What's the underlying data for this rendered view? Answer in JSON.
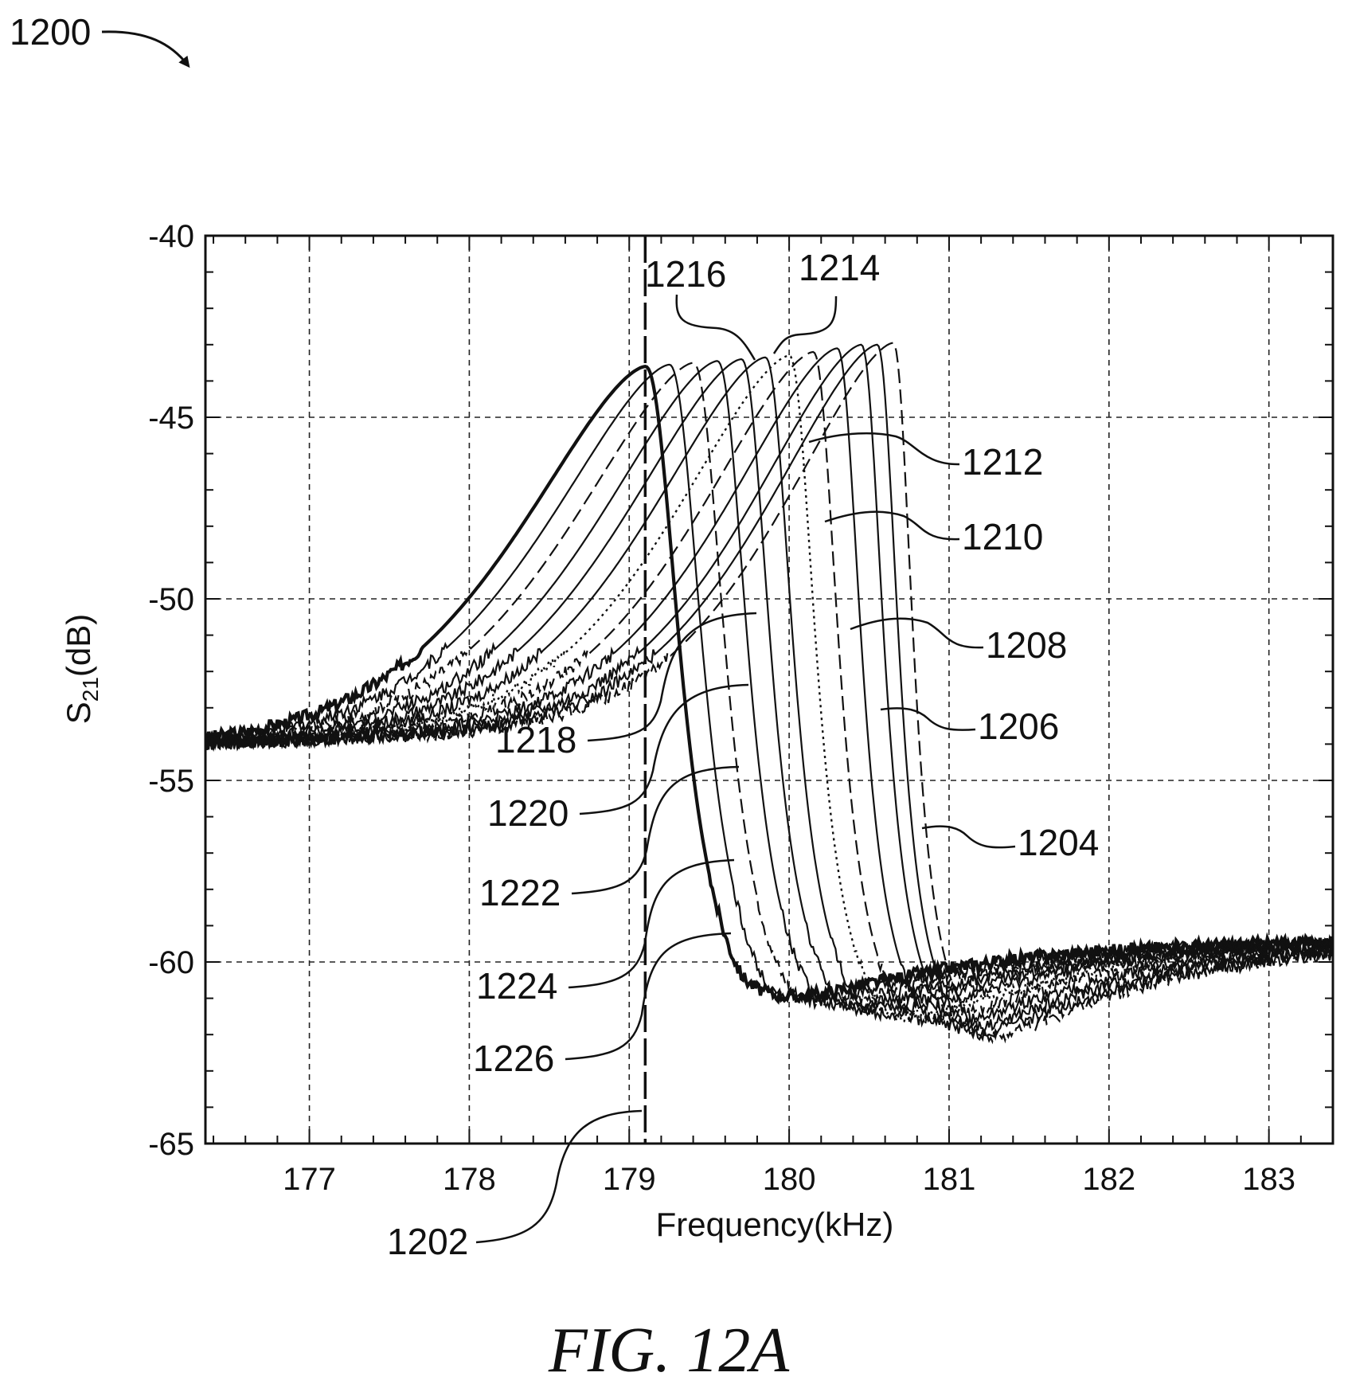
{
  "figure": {
    "number": "1200",
    "caption": "FIG. 12A"
  },
  "chart_data": {
    "type": "line",
    "title": "",
    "xlabel": "Frequency(kHz)",
    "ylabel_main": "S",
    "ylabel_sub": "21",
    "ylabel_unit": "(dB)",
    "xlim": [
      176.35,
      183.4
    ],
    "ylim": [
      -65,
      -40
    ],
    "xticks": [
      177,
      178,
      179,
      180,
      181,
      182,
      183
    ],
    "yticks": [
      -40,
      -45,
      -50,
      -55,
      -60,
      -65
    ],
    "grid": true,
    "marker_line": {
      "label": "1202",
      "x": 179.1,
      "style": "long-dash"
    },
    "series": [
      {
        "name": "1226",
        "f0": 179.1,
        "peak": -43.6,
        "width": 0.26,
        "style": "bold"
      },
      {
        "name": "1224",
        "f0": 179.25,
        "peak": -43.55,
        "width": 0.25,
        "style": "solid"
      },
      {
        "name": "1222",
        "f0": 179.4,
        "peak": -43.5,
        "width": 0.24,
        "style": "dashed"
      },
      {
        "name": "1220",
        "f0": 179.55,
        "peak": -43.45,
        "width": 0.23,
        "style": "solid"
      },
      {
        "name": "1218",
        "f0": 179.7,
        "peak": -43.4,
        "width": 0.22,
        "style": "solid"
      },
      {
        "name": "1216",
        "f0": 179.85,
        "peak": -43.35,
        "width": 0.21,
        "style": "solid"
      },
      {
        "name": "1214",
        "f0": 180.0,
        "peak": -43.3,
        "width": 0.2,
        "style": "dotted"
      },
      {
        "name": "1212",
        "f0": 180.15,
        "peak": -43.2,
        "width": 0.19,
        "style": "dashed"
      },
      {
        "name": "1210",
        "f0": 180.3,
        "peak": -43.1,
        "width": 0.18,
        "style": "solid"
      },
      {
        "name": "1208",
        "f0": 180.45,
        "peak": -43.0,
        "width": 0.17,
        "style": "solid"
      },
      {
        "name": "1206",
        "f0": 180.55,
        "peak": -43.0,
        "width": 0.16,
        "style": "solid"
      },
      {
        "name": "1204",
        "f0": 180.65,
        "peak": -42.95,
        "width": 0.15,
        "style": "dashed"
      }
    ]
  }
}
